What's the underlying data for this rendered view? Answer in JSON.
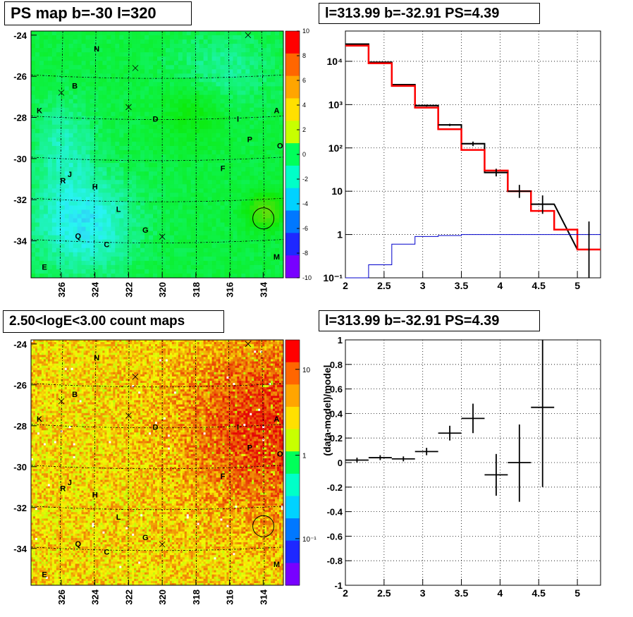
{
  "panels": {
    "ps_map": {
      "title": "PS map b=-30 l=320",
      "colorbar_ticks": [
        "10",
        "8",
        "6",
        "4",
        "2",
        "0",
        "-2",
        "-4",
        "-6",
        "-8",
        "-10"
      ],
      "colorbar_colors": [
        "#ff0000",
        "#ff6600",
        "#ffa500",
        "#ffe000",
        "#c8ff00",
        "#00ff5a",
        "#00ffc8",
        "#00d2ff",
        "#0078ff",
        "#1e28ff",
        "#7800ff"
      ]
    },
    "count_map": {
      "title": "2.50<logE<3.00 count maps",
      "colorbar_ticks": [
        "10",
        "1",
        "10⁻¹"
      ],
      "colorbar_colors": [
        "#ff0000",
        "#ff6600",
        "#ffa500",
        "#ffe000",
        "#c8ff00",
        "#00ff5a",
        "#00ffc8",
        "#00d2ff",
        "#0078ff",
        "#1e28ff",
        "#7800ff"
      ]
    },
    "spectrum": {
      "title": "l=313.99 b=-32.91 PS=4.39"
    },
    "residual": {
      "title": "l=313.99 b=-32.91 PS=4.39",
      "ylabel": "(data-model)/model"
    }
  },
  "map_axes": {
    "y_ticks": [
      "-24",
      "-26",
      "-28",
      "-30",
      "-32",
      "-34"
    ],
    "x_ticks": [
      "326",
      "324",
      "322",
      "320",
      "318",
      "316",
      "314"
    ]
  },
  "source_labels": [
    {
      "id": "N",
      "l": 323.9,
      "b": -24.8
    },
    {
      "id": "B",
      "l": 325.2,
      "b": -26.6
    },
    {
      "id": "K",
      "l": 327.3,
      "b": -27.8
    },
    {
      "id": "D",
      "l": 320.4,
      "b": -28.2
    },
    {
      "id": "I",
      "l": 315.5,
      "b": -28.2
    },
    {
      "id": "A",
      "l": 313.2,
      "b": -27.8
    },
    {
      "id": "P",
      "l": 314.8,
      "b": -29.2
    },
    {
      "id": "O",
      "l": 313.0,
      "b": -29.5
    },
    {
      "id": "F",
      "l": 316.4,
      "b": -30.6
    },
    {
      "id": "J",
      "l": 325.5,
      "b": -30.9
    },
    {
      "id": "R",
      "l": 325.9,
      "b": -31.2
    },
    {
      "id": "H",
      "l": 324.0,
      "b": -31.5
    },
    {
      "id": "L",
      "l": 322.6,
      "b": -32.6
    },
    {
      "id": "G",
      "l": 321.0,
      "b": -33.6
    },
    {
      "id": "Q",
      "l": 325.0,
      "b": -33.9
    },
    {
      "id": "C",
      "l": 323.3,
      "b": -34.3
    },
    {
      "id": "M",
      "l": 313.2,
      "b": -34.9
    },
    {
      "id": "E",
      "l": 327.0,
      "b": -35.4
    }
  ],
  "cross_markers": [
    {
      "l": 314.9,
      "b": -24.0
    },
    {
      "l": 321.6,
      "b": -25.6
    },
    {
      "l": 326.0,
      "b": -26.8
    },
    {
      "l": 322.0,
      "b": -27.5
    },
    {
      "l": 320.0,
      "b": -33.8
    }
  ],
  "ps_circle": {
    "l": 313.99,
    "b": -32.91
  },
  "chart_data": [
    {
      "type": "heatmap",
      "title": "PS map b=-30 l=320",
      "xlim": [
        327.8,
        312.8
      ],
      "ylim": [
        -35.8,
        -23.8
      ],
      "zlim": [
        -10,
        10
      ],
      "grid": true
    },
    {
      "type": "line",
      "title": "l=313.99 b=-32.91 PS=4.39",
      "xlim": [
        2,
        5.3
      ],
      "ylim": [
        0.1,
        50000
      ],
      "yscale": "log",
      "xticks": [
        "2",
        "2.5",
        "3",
        "3.5",
        "4",
        "4.5",
        "5"
      ],
      "yticks": [
        {
          "v": 0.1,
          "t": "10⁻¹"
        },
        {
          "v": 1,
          "t": "1"
        },
        {
          "v": 10,
          "t": "10"
        },
        {
          "v": 100,
          "t": "10²"
        },
        {
          "v": 1000,
          "t": "10³"
        },
        {
          "v": 10000,
          "t": "10⁴"
        }
      ],
      "grid": true,
      "series": [
        {
          "color": "#000000",
          "edges": [
            2,
            2.3,
            2.6,
            2.9,
            3.2,
            3.5,
            3.8,
            4.1,
            4.4,
            4.7,
            5.0,
            5.3
          ],
          "values": [
            25000,
            9500,
            2900,
            950,
            340,
            125,
            27,
            10,
            5,
            null,
            0.45
          ]
        },
        {
          "color": "#ff0000",
          "edges": [
            2,
            2.3,
            2.6,
            2.9,
            3.2,
            3.5,
            3.8,
            4.1,
            4.4,
            4.7,
            5.0,
            5.3
          ],
          "values": [
            23000,
            9000,
            2700,
            850,
            270,
            90,
            30,
            10,
            3.5,
            1.3,
            0.45
          ]
        },
        {
          "color": "#0000cc",
          "edges": [
            2,
            2.3,
            2.6,
            2.9,
            3.2,
            3.5,
            3.8,
            4.1,
            4.4,
            4.7,
            5.0,
            5.3
          ],
          "values": [
            0.1,
            0.2,
            0.6,
            0.9,
            0.95,
            1,
            1,
            1,
            1,
            1,
            1
          ]
        }
      ],
      "points": [
        {
          "x": 3.05,
          "y": 950,
          "ylo": 900,
          "yhi": 1000,
          "xerr": 0.15
        },
        {
          "x": 3.35,
          "y": 340,
          "ylo": 320,
          "yhi": 360,
          "xerr": 0.15
        },
        {
          "x": 3.65,
          "y": 125,
          "ylo": 110,
          "yhi": 140,
          "xerr": 0.15
        },
        {
          "x": 3.95,
          "y": 27,
          "ylo": 22,
          "yhi": 33,
          "xerr": 0.15
        },
        {
          "x": 4.25,
          "y": 10,
          "ylo": 7,
          "yhi": 14,
          "xerr": 0.15
        },
        {
          "x": 4.55,
          "y": 5,
          "ylo": 3,
          "yhi": 8,
          "xerr": 0.15
        },
        {
          "x": 5.15,
          "y": 0.45,
          "ylo": 0.1,
          "yhi": 2,
          "xerr": 0
        }
      ]
    },
    {
      "type": "heatmap",
      "title": "2.50<logE<3.00 count maps",
      "xlim": [
        327.8,
        312.8
      ],
      "ylim": [
        -35.8,
        -23.8
      ],
      "zscale": "log",
      "grid": true
    },
    {
      "type": "scatter",
      "title": "l=313.99 b=-32.91 PS=4.39",
      "ylabel": "(data-model)/model",
      "xlim": [
        2,
        5.3
      ],
      "ylim": [
        -1,
        1
      ],
      "xticks": [
        "2",
        "2.5",
        "3",
        "3.5",
        "4",
        "4.5",
        "5"
      ],
      "yticks": [
        "1",
        "0.8",
        "0.6",
        "0.4",
        "0.2",
        "0",
        "-0.2",
        "-0.4",
        "-0.6",
        "-0.8",
        "-1"
      ],
      "grid": true,
      "points": [
        {
          "x": 2.15,
          "y": 0.02,
          "ylo": 0.0,
          "yhi": 0.04,
          "xerr": 0.15
        },
        {
          "x": 2.45,
          "y": 0.04,
          "ylo": 0.02,
          "yhi": 0.06,
          "xerr": 0.15
        },
        {
          "x": 2.75,
          "y": 0.03,
          "ylo": 0.01,
          "yhi": 0.05,
          "xerr": 0.15
        },
        {
          "x": 3.05,
          "y": 0.09,
          "ylo": 0.06,
          "yhi": 0.12,
          "xerr": 0.15
        },
        {
          "x": 3.35,
          "y": 0.24,
          "ylo": 0.18,
          "yhi": 0.3,
          "xerr": 0.15
        },
        {
          "x": 3.65,
          "y": 0.36,
          "ylo": 0.24,
          "yhi": 0.48,
          "xerr": 0.15
        },
        {
          "x": 3.95,
          "y": -0.1,
          "ylo": -0.27,
          "yhi": 0.07,
          "xerr": 0.15
        },
        {
          "x": 4.25,
          "y": 0.0,
          "ylo": -0.32,
          "yhi": 0.31,
          "xerr": 0.15
        },
        {
          "x": 4.55,
          "y": 0.45,
          "ylo": -0.2,
          "yhi": 1.0,
          "xerr": 0.15
        }
      ]
    }
  ]
}
